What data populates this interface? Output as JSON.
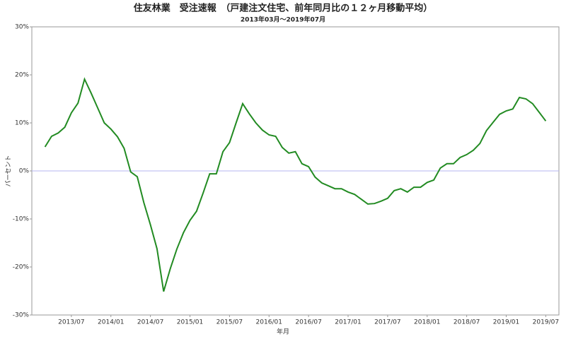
{
  "chart_data": {
    "type": "line",
    "title": "住友林業　受注速報　（戸建注文住宅、前年同月比の１２ヶ月移動平均）",
    "subtitle": "2013年03月～2019年07月",
    "x_label": "年月",
    "y_label": "パーセント",
    "x": [
      "2013/03",
      "2013/04",
      "2013/05",
      "2013/06",
      "2013/07",
      "2013/08",
      "2013/09",
      "2013/10",
      "2013/11",
      "2013/12",
      "2014/01",
      "2014/02",
      "2014/03",
      "2014/04",
      "2014/05",
      "2014/06",
      "2014/07",
      "2014/08",
      "2014/09",
      "2014/10",
      "2014/11",
      "2014/12",
      "2015/01",
      "2015/02",
      "2015/03",
      "2015/04",
      "2015/05",
      "2015/06",
      "2015/07",
      "2015/08",
      "2015/09",
      "2015/10",
      "2015/11",
      "2015/12",
      "2016/01",
      "2016/02",
      "2016/03",
      "2016/04",
      "2016/05",
      "2016/06",
      "2016/07",
      "2016/08",
      "2016/09",
      "2016/10",
      "2016/11",
      "2016/12",
      "2017/01",
      "2017/02",
      "2017/03",
      "2017/04",
      "2017/05",
      "2017/06",
      "2017/07",
      "2017/08",
      "2017/09",
      "2017/10",
      "2017/11",
      "2017/12",
      "2018/01",
      "2018/02",
      "2018/03",
      "2018/04",
      "2018/05",
      "2018/06",
      "2018/07",
      "2018/08",
      "2018/09",
      "2018/10",
      "2018/11",
      "2018/12",
      "2019/01",
      "2019/02",
      "2019/03",
      "2019/04",
      "2019/05",
      "2019/06",
      "2019/07"
    ],
    "series": [
      {
        "name": "受注速報",
        "color": "#228b22",
        "values": [
          5.0,
          7.2,
          7.9,
          9.1,
          12.1,
          14.1,
          19.1,
          16.2,
          13.1,
          10.0,
          8.7,
          7.1,
          4.7,
          -0.2,
          -1.2,
          -6.6,
          -11.2,
          -16.2,
          -25.1,
          -20.4,
          -16.3,
          -12.9,
          -10.3,
          -8.4,
          -4.6,
          -0.6,
          -0.6,
          4.0,
          5.9,
          10.0,
          14.0,
          11.9,
          10.0,
          8.5,
          7.5,
          7.2,
          4.9,
          3.7,
          4.0,
          1.5,
          0.9,
          -1.3,
          -2.5,
          -3.1,
          -3.7,
          -3.7,
          -4.4,
          -4.9,
          -5.9,
          -6.9,
          -6.8,
          -6.3,
          -5.7,
          -4.1,
          -3.7,
          -4.4,
          -3.4,
          -3.4,
          -2.4,
          -1.9,
          0.6,
          1.5,
          1.5,
          2.8,
          3.4,
          4.3,
          5.7,
          8.4,
          10.1,
          11.8,
          12.5,
          12.9,
          15.3,
          15.0,
          14.0,
          12.2,
          10.4
        ]
      }
    ],
    "xlim": [
      "2013/01",
      "2019/09"
    ],
    "xticks": [
      "2013/07",
      "2014/01",
      "2014/07",
      "2015/01",
      "2015/07",
      "2016/01",
      "2016/07",
      "2017/01",
      "2017/07",
      "2018/01",
      "2018/07",
      "2019/01",
      "2019/07"
    ],
    "ylim": [
      -30,
      30
    ],
    "yticks": [
      {
        "value": -30,
        "label": "-30%"
      },
      {
        "value": -20,
        "label": "-20%"
      },
      {
        "value": -10,
        "label": "-10%"
      },
      {
        "value": 0,
        "label": "0%"
      },
      {
        "value": 10,
        "label": "10%"
      },
      {
        "value": 20,
        "label": "20%"
      },
      {
        "value": 30,
        "label": "30%"
      }
    ],
    "zero_line_color": "#b4b4f0"
  }
}
